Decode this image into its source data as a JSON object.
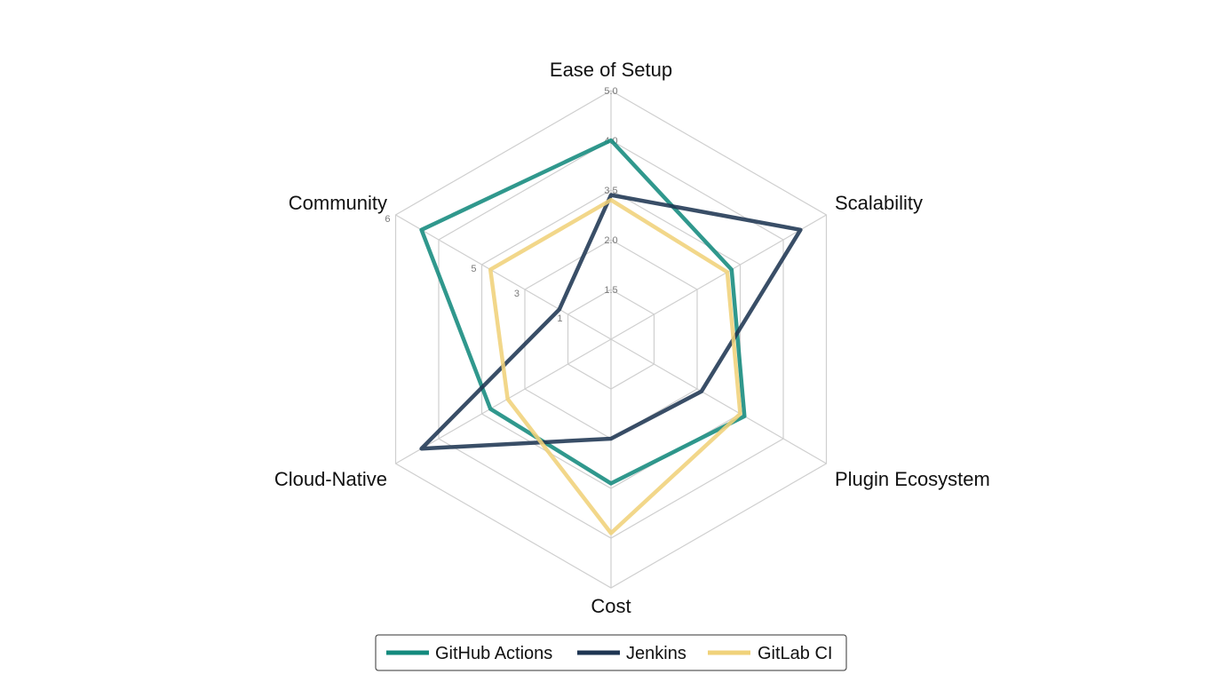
{
  "chart_data": {
    "type": "radar",
    "title": "",
    "axes": [
      "Ease of Setup",
      "Scalability",
      "Plugin Ecosystem",
      "Cost",
      "Cloud-Native",
      "Community"
    ],
    "rmax": 5,
    "grid_levels": 5,
    "ticks": [
      {
        "axis": "Ease of Setup",
        "labels": [
          "1.5",
          "2.0",
          "3.5",
          "4.0",
          "5.0"
        ]
      },
      {
        "axis": "Community",
        "labels": [
          "1",
          "3",
          "5",
          "6"
        ]
      }
    ],
    "series": [
      {
        "name": "GitHub Actions",
        "color": "#138a7d",
        "values": [
          4.0,
          2.8,
          3.1,
          2.9,
          2.8,
          4.4
        ]
      },
      {
        "name": "Jenkins",
        "color": "#1e3552",
        "values": [
          2.9,
          4.4,
          2.1,
          2.0,
          4.4,
          1.2
        ]
      },
      {
        "name": "GitLab CI",
        "color": "#f0d27a",
        "values": [
          2.8,
          2.7,
          3.0,
          3.9,
          2.4,
          2.8
        ]
      }
    ],
    "legend_position": "bottom-center",
    "grid": true
  }
}
